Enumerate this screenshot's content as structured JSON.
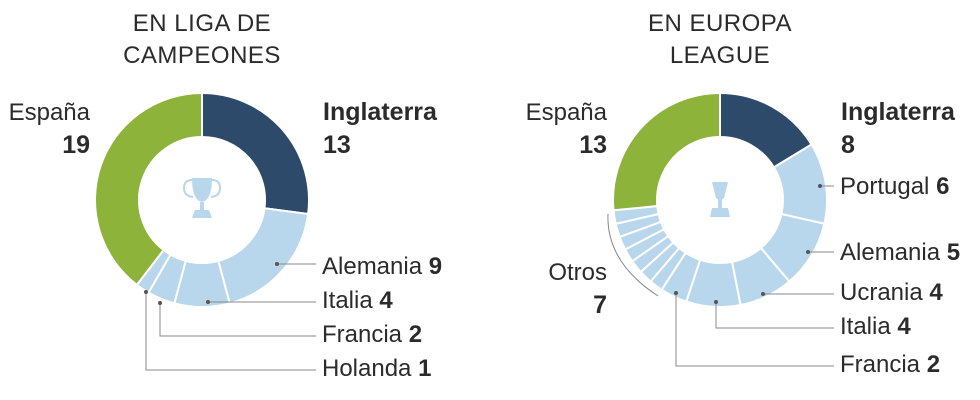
{
  "chart_data": [
    {
      "type": "pie",
      "title_lines": [
        "EN LIGA DE",
        "CAMPEONES"
      ],
      "categories": [
        "Inglaterra",
        "Alemania",
        "Italia",
        "Francia",
        "Holanda",
        "España"
      ],
      "values": [
        13,
        9,
        4,
        2,
        1,
        19
      ],
      "colors": [
        "#2e4a6b",
        "#b9d7ec",
        "#b9d7ec",
        "#b9d7ec",
        "#b9d7ec",
        "#8db33a"
      ],
      "icon": "champions-league-trophy-icon"
    },
    {
      "type": "pie",
      "title_lines": [
        "EN EUROPA",
        "LEAGUE"
      ],
      "categories": [
        "Inglaterra",
        "Portugal",
        "Alemania",
        "Ucrania",
        "Italia",
        "Francia",
        "Otros",
        "España"
      ],
      "values": [
        8,
        6,
        5,
        4,
        4,
        2,
        7,
        13
      ],
      "colors": [
        "#2e4a6b",
        "#b9d7ec",
        "#b9d7ec",
        "#b9d7ec",
        "#b9d7ec",
        "#b9d7ec",
        "#b9d7ec",
        "#8db33a"
      ],
      "others_split": 7,
      "icon": "europa-league-trophy-icon"
    }
  ]
}
